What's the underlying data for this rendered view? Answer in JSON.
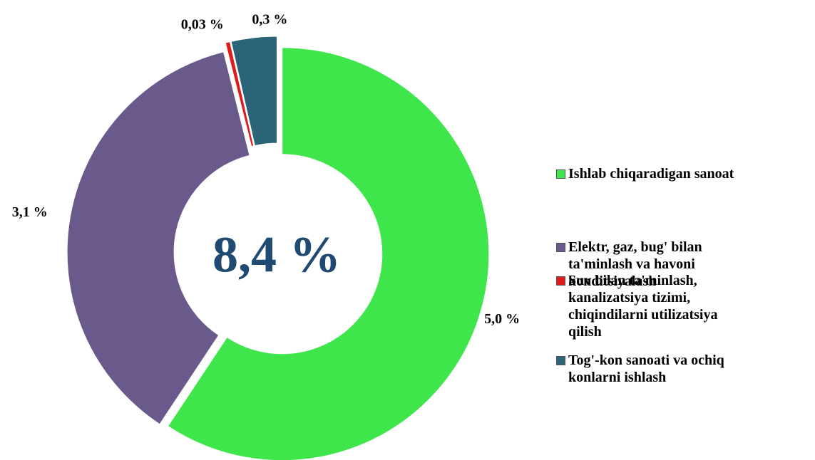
{
  "chart_data": {
    "type": "donut",
    "center_text": "8,4 %",
    "categories": [
      "Ishlab chiqaradigan sanoat",
      "Elektr, gaz, bug' bilan ta'minlash va havoni konditsiyalash",
      "Suv bilan ta'minlash, kanalizatsiya tizimi, chiqindilarni utilizatsiya qilish",
      "Tog'-kon sanoati va ochiq konlarni ishlash"
    ],
    "values": [
      5.0,
      3.1,
      0.03,
      0.3
    ],
    "value_labels": [
      "5,0 %",
      "3,1 %",
      "0,03 %",
      "0,3 %"
    ],
    "colors": [
      "#3ee64b",
      "#6a5a8b",
      "#e01b1b",
      "#2b6479"
    ],
    "legend": "right"
  }
}
